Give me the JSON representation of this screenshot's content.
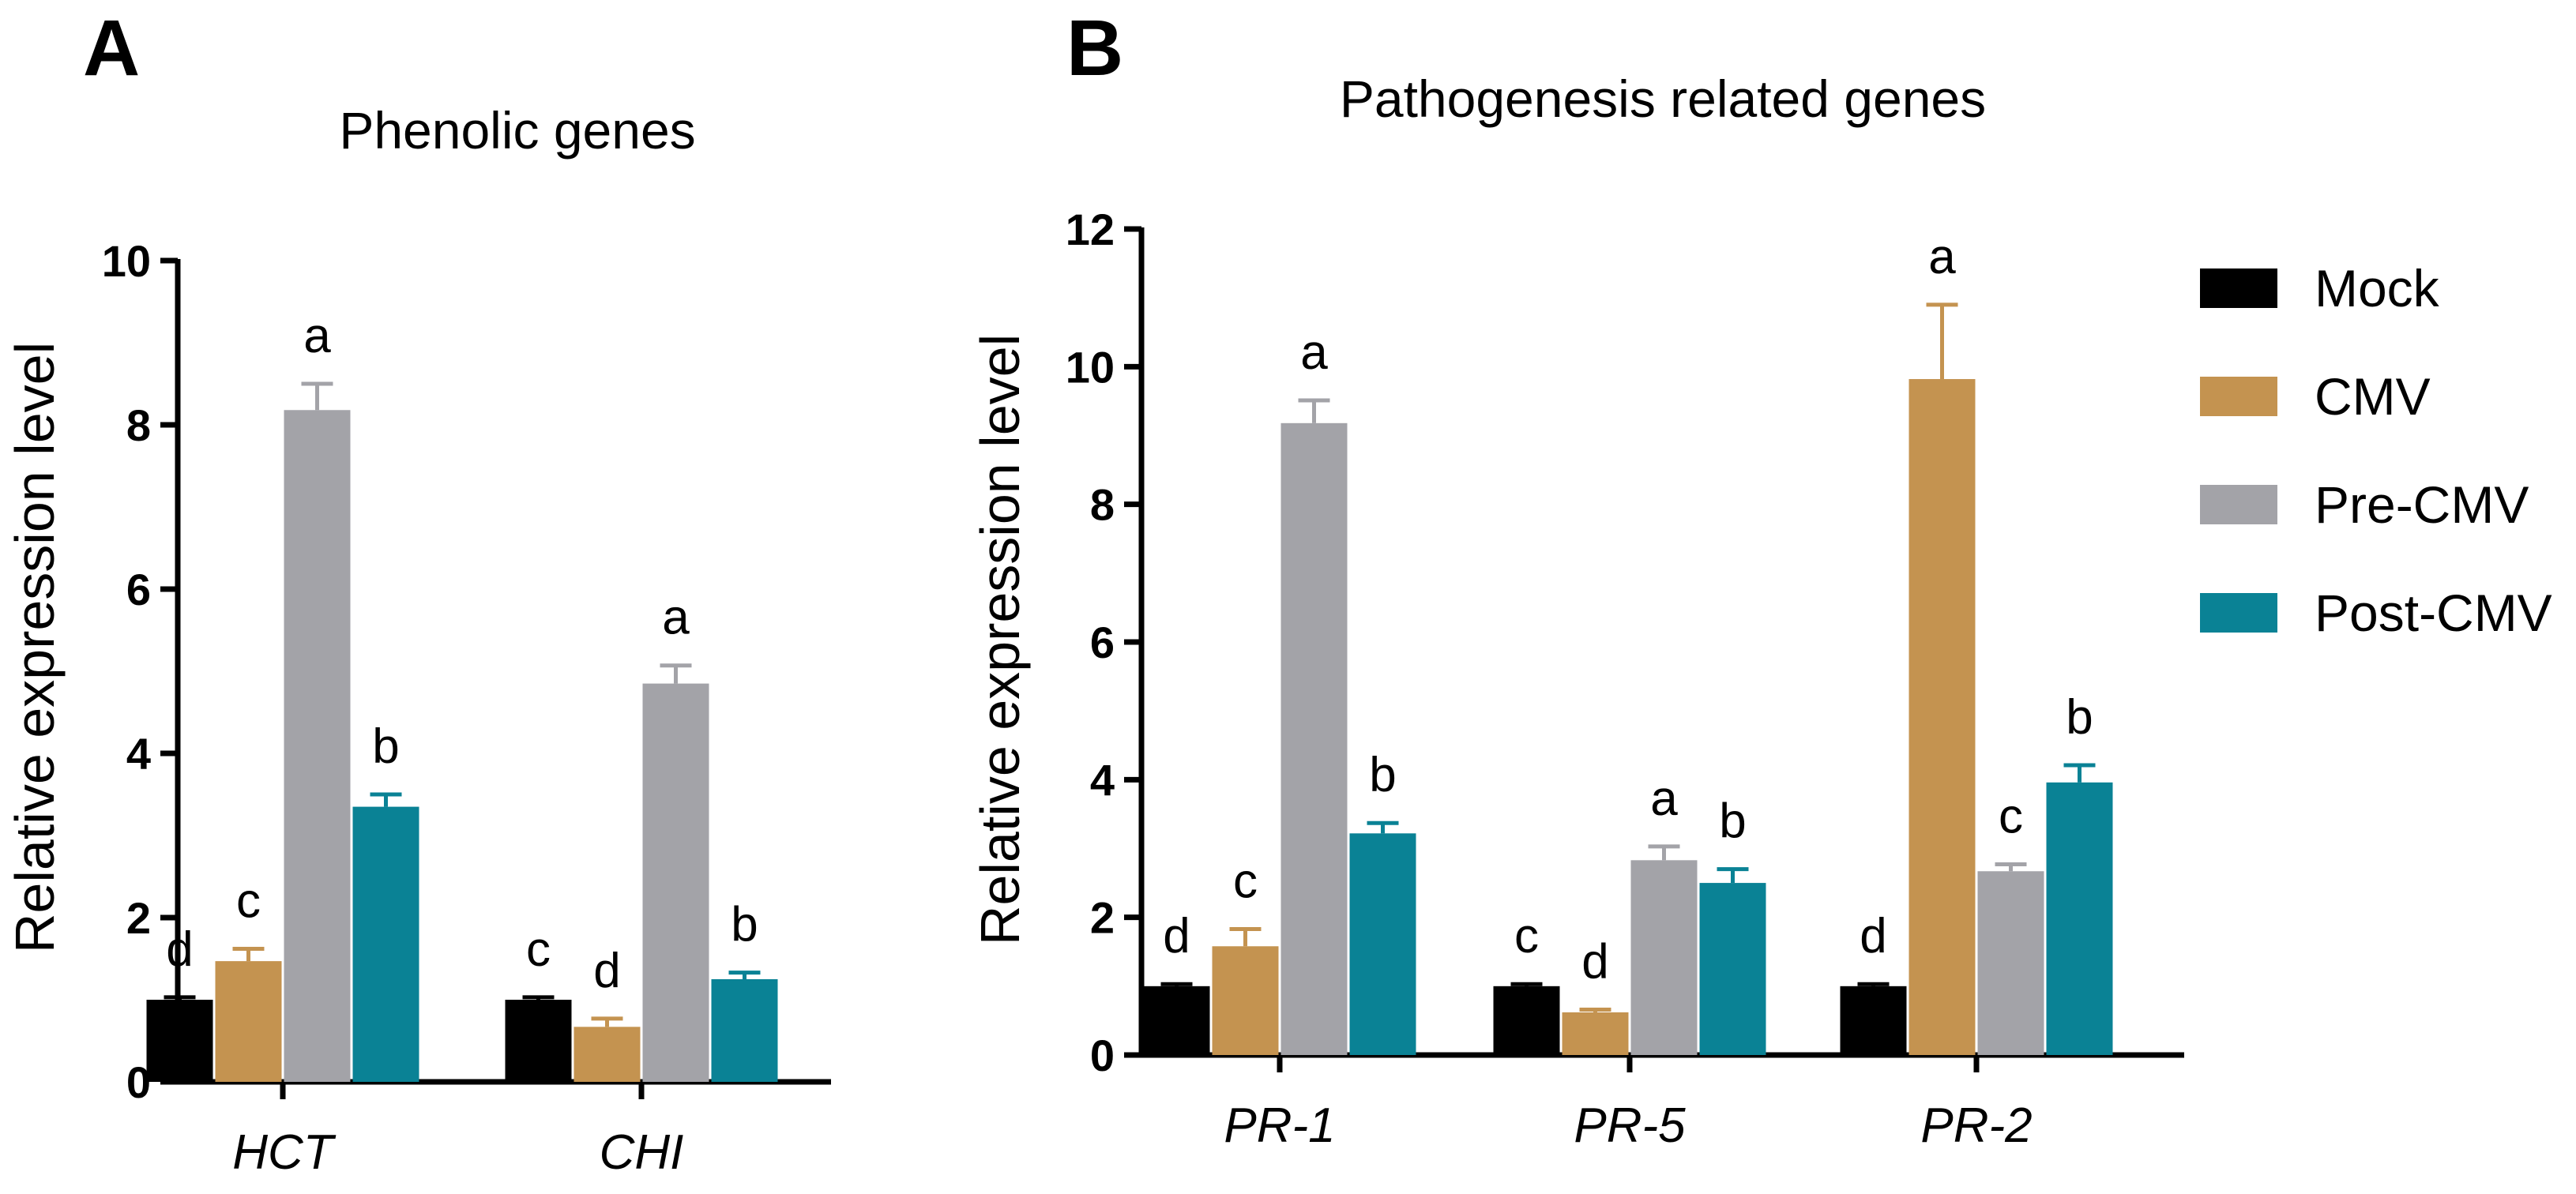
{
  "colors": {
    "Mock": "#000000",
    "CMV": "#C49350",
    "Pre-CMV": "#A3A3A8",
    "Post-CMV": "#0A8295"
  },
  "legend": [
    "Mock",
    "CMV",
    "Pre-CMV",
    "Post-CMV"
  ],
  "chart_data": [
    {
      "panel": "A",
      "type": "bar",
      "title": "Phenolic genes",
      "ylabel": "Relative expression level",
      "xlabel": "",
      "ylim": [
        0,
        10
      ],
      "yticks": [
        0,
        2,
        4,
        6,
        8,
        10
      ],
      "categories": [
        "HCT",
        "CHI"
      ],
      "series": [
        {
          "name": "Mock",
          "values": [
            1.0,
            1.0
          ],
          "errors": [
            0.03,
            0.03
          ],
          "letters": [
            "d",
            "c"
          ]
        },
        {
          "name": "CMV",
          "values": [
            1.47,
            0.67
          ],
          "errors": [
            0.15,
            0.1
          ],
          "letters": [
            "c",
            "d"
          ]
        },
        {
          "name": "Pre-CMV",
          "values": [
            8.18,
            4.85
          ],
          "errors": [
            0.32,
            0.22
          ],
          "letters": [
            "a",
            "a"
          ]
        },
        {
          "name": "Post-CMV",
          "values": [
            3.35,
            1.25
          ],
          "errors": [
            0.15,
            0.08
          ],
          "letters": [
            "b",
            "b"
          ]
        }
      ]
    },
    {
      "panel": "B",
      "type": "bar",
      "title": "Pathogenesis related genes",
      "ylabel": "Relative expression level",
      "xlabel": "",
      "ylim": [
        0,
        12
      ],
      "yticks": [
        0,
        2,
        4,
        6,
        8,
        10,
        12
      ],
      "categories": [
        "PR-1",
        "PR-5",
        "PR-2"
      ],
      "series": [
        {
          "name": "Mock",
          "values": [
            1.0,
            1.0,
            1.0
          ],
          "errors": [
            0.03,
            0.03,
            0.03
          ],
          "letters": [
            "d",
            "c",
            "d"
          ]
        },
        {
          "name": "CMV",
          "values": [
            1.58,
            0.62,
            9.82
          ],
          "errors": [
            0.25,
            0.04,
            1.08
          ],
          "letters": [
            "c",
            "d",
            "a"
          ]
        },
        {
          "name": "Pre-CMV",
          "values": [
            9.18,
            2.83,
            2.67
          ],
          "errors": [
            0.33,
            0.2,
            0.1
          ],
          "letters": [
            "a",
            "a",
            "c"
          ]
        },
        {
          "name": "Post-CMV",
          "values": [
            3.22,
            2.5,
            3.96
          ],
          "errors": [
            0.15,
            0.2,
            0.25
          ],
          "letters": [
            "b",
            "b",
            "b"
          ]
        }
      ]
    }
  ]
}
